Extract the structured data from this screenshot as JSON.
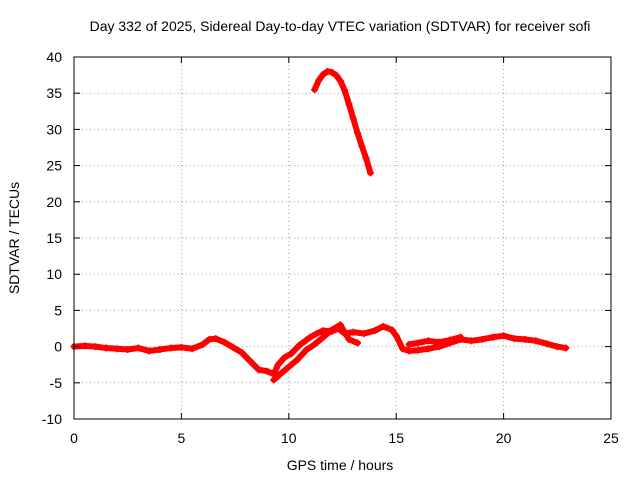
{
  "chart_data": {
    "type": "scatter",
    "title": "Day 332 of 2025, Sidereal Day-to-day VTEC variation (SDTVAR) for receiver sofi",
    "xlabel": "GPS time / hours",
    "ylabel": "SDTVAR / TECUs",
    "xlim": [
      0,
      25
    ],
    "ylim": [
      -10,
      40
    ],
    "xticks": [
      0,
      5,
      10,
      15,
      20,
      25
    ],
    "yticks": [
      -10,
      -5,
      0,
      5,
      10,
      15,
      20,
      25,
      30,
      35,
      40
    ],
    "xtick_labels": [
      "0",
      "5",
      "10",
      "15",
      "20",
      "25"
    ],
    "ytick_labels": [
      "-10",
      "-5",
      "0",
      "5",
      "10",
      "15",
      "20",
      "25",
      "30",
      "35",
      "40"
    ],
    "grid": true,
    "marker": "+",
    "color": "#ff0000",
    "series": [
      {
        "name": "main trace",
        "x": [
          0.0,
          0.5,
          1.0,
          1.5,
          2.0,
          2.5,
          3.0,
          3.5,
          4.0,
          4.5,
          5.0,
          5.5,
          6.0,
          6.3,
          6.6,
          7.0,
          7.4,
          7.8,
          8.2,
          8.6,
          9.0,
          9.3,
          9.5,
          9.8,
          10.1,
          10.5,
          11.0,
          11.3,
          11.6,
          12.0,
          12.3,
          12.6,
          13.0,
          13.5,
          14.0,
          14.4,
          14.8,
          15.0,
          15.3,
          15.6,
          16.0,
          16.5,
          17.0,
          17.5,
          18.0,
          18.5,
          19.0,
          19.5,
          20.0,
          20.5,
          21.0,
          21.5,
          22.0,
          22.5,
          22.9
        ],
        "y": [
          0.0,
          0.1,
          0.0,
          -0.2,
          -0.3,
          -0.4,
          -0.2,
          -0.6,
          -0.4,
          -0.2,
          -0.1,
          -0.3,
          0.3,
          1.0,
          1.1,
          0.6,
          -0.1,
          -0.8,
          -2.0,
          -3.2,
          -3.4,
          -3.8,
          -2.5,
          -1.5,
          -1.0,
          0.2,
          1.3,
          1.8,
          2.2,
          2.1,
          2.5,
          1.8,
          2.0,
          1.8,
          2.2,
          2.8,
          2.3,
          1.5,
          -0.3,
          -0.6,
          -0.5,
          -0.3,
          0.0,
          0.5,
          1.0,
          0.8,
          1.0,
          1.3,
          1.5,
          1.1,
          1.0,
          0.8,
          0.4,
          0.0,
          -0.2
        ]
      },
      {
        "name": "secondary branch",
        "x": [
          9.3,
          9.6,
          10.0,
          10.4,
          10.8,
          11.2,
          11.6,
          12.0,
          12.4,
          12.8,
          13.2
        ],
        "y": [
          -4.6,
          -3.8,
          -2.8,
          -1.8,
          -0.5,
          0.3,
          1.3,
          2.3,
          3.0,
          1.0,
          0.5
        ]
      },
      {
        "name": "secondary branch 2",
        "x": [
          15.6,
          16.0,
          16.5,
          17.0,
          17.5,
          18.0
        ],
        "y": [
          0.3,
          0.5,
          0.8,
          0.6,
          0.9,
          1.3
        ]
      },
      {
        "name": "upper arc",
        "x": [
          11.2,
          11.4,
          11.6,
          11.8,
          12.0,
          12.2,
          12.4,
          12.6,
          12.8,
          13.0,
          13.2,
          13.4,
          13.6,
          13.8
        ],
        "y": [
          35.5,
          36.8,
          37.6,
          38.0,
          37.9,
          37.5,
          36.7,
          35.4,
          33.5,
          31.5,
          29.5,
          27.7,
          26.0,
          24.0
        ]
      }
    ]
  }
}
